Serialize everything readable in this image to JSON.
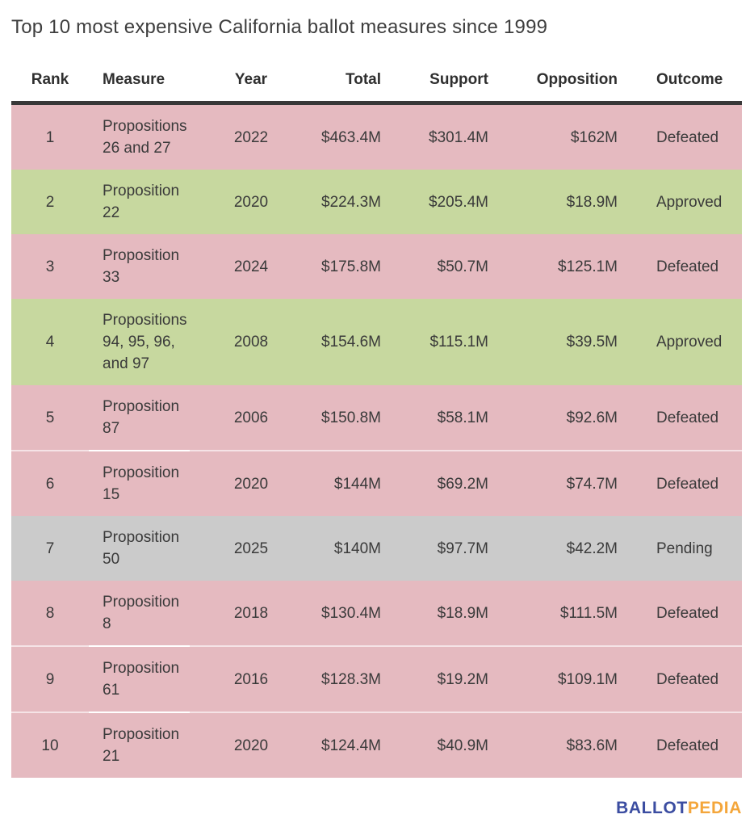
{
  "chart_data": {
    "type": "table",
    "title": "Top 10 most expensive California ballot measures since 1999",
    "columns": [
      "Rank",
      "Measure",
      "Year",
      "Total",
      "Support",
      "Opposition",
      "Outcome"
    ],
    "rows": [
      {
        "rank": "1",
        "measure": "Propositions 26 and 27",
        "year": "2022",
        "total": "$463.4M",
        "support": "$301.4M",
        "opposition": "$162M",
        "outcome": "Defeated",
        "status": "defeated"
      },
      {
        "rank": "2",
        "measure": "Proposition 22",
        "year": "2020",
        "total": "$224.3M",
        "support": "$205.4M",
        "opposition": "$18.9M",
        "outcome": "Approved",
        "status": "approved"
      },
      {
        "rank": "3",
        "measure": "Proposition 33",
        "year": "2024",
        "total": "$175.8M",
        "support": "$50.7M",
        "opposition": "$125.1M",
        "outcome": "Defeated",
        "status": "defeated"
      },
      {
        "rank": "4",
        "measure": "Propositions 94, 95, 96, and 97",
        "year": "2008",
        "total": "$154.6M",
        "support": "$115.1M",
        "opposition": "$39.5M",
        "outcome": "Approved",
        "status": "approved"
      },
      {
        "rank": "5",
        "measure": "Proposition 87",
        "year": "2006",
        "total": "$150.8M",
        "support": "$58.1M",
        "opposition": "$92.6M",
        "outcome": "Defeated",
        "status": "defeated"
      },
      {
        "rank": "6",
        "measure": "Proposition 15",
        "year": "2020",
        "total": "$144M",
        "support": "$69.2M",
        "opposition": "$74.7M",
        "outcome": "Defeated",
        "status": "defeated"
      },
      {
        "rank": "7",
        "measure": "Proposition 50",
        "year": "2025",
        "total": "$140M",
        "support": "$97.7M",
        "opposition": "$42.2M",
        "outcome": "Pending",
        "status": "pending"
      },
      {
        "rank": "8",
        "measure": "Proposition 8",
        "year": "2018",
        "total": "$130.4M",
        "support": "$18.9M",
        "opposition": "$111.5M",
        "outcome": "Defeated",
        "status": "defeated"
      },
      {
        "rank": "9",
        "measure": "Proposition 61",
        "year": "2016",
        "total": "$128.3M",
        "support": "$19.2M",
        "opposition": "$109.1M",
        "outcome": "Defeated",
        "status": "defeated"
      },
      {
        "rank": "10",
        "measure": "Proposition 21",
        "year": "2020",
        "total": "$124.4M",
        "support": "$40.9M",
        "opposition": "$83.6M",
        "outcome": "Defeated",
        "status": "defeated"
      }
    ],
    "row_color_coding": {
      "defeated": "#e5bac0",
      "approved": "#c7d89f",
      "pending": "#cbcbcb"
    },
    "text_color": "#3a3a3a"
  },
  "logo": {
    "part1": "BALLOT",
    "part2": "PEDIA",
    "colors": {
      "part1": "#3b4da1",
      "part2": "#f4a63b"
    }
  }
}
